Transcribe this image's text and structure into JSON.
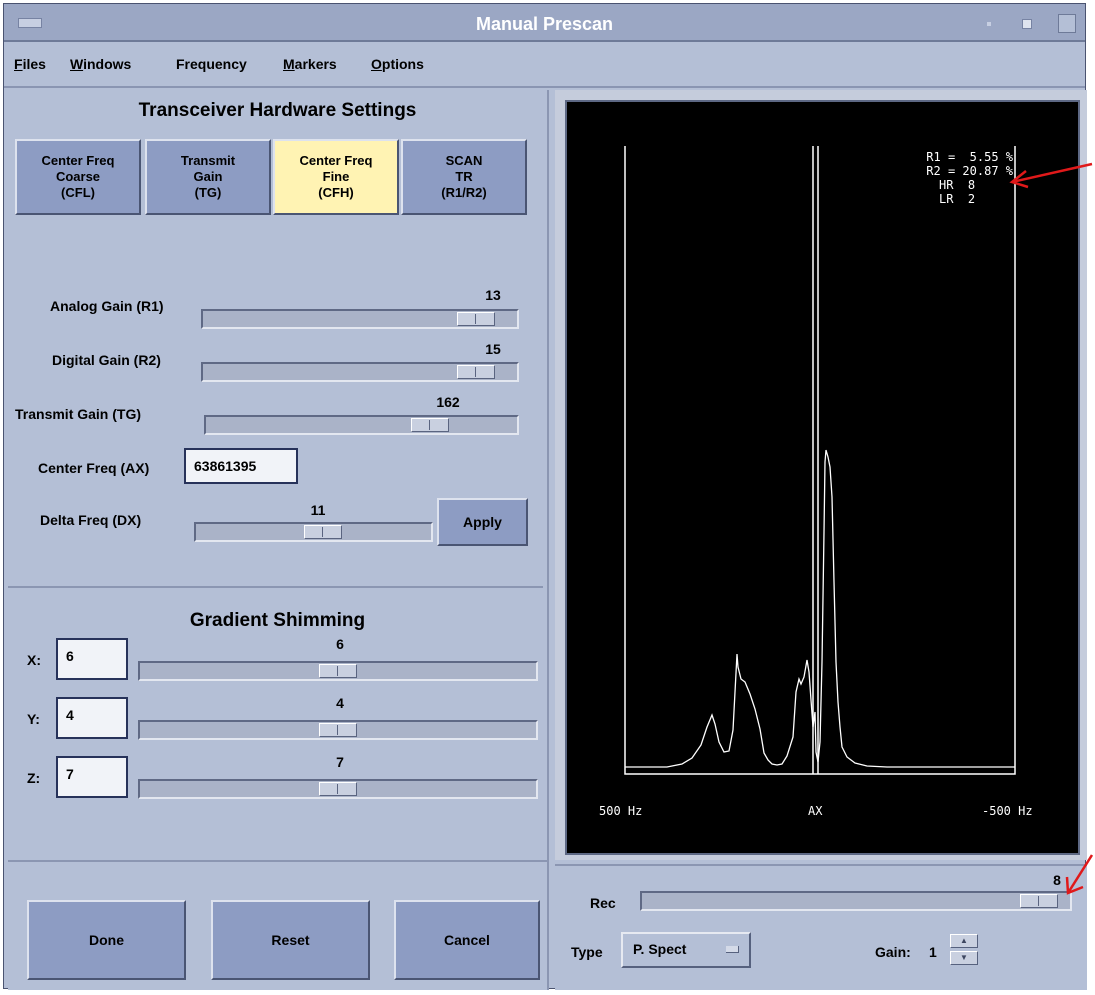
{
  "window": {
    "title": "Manual Prescan"
  },
  "menu": [
    {
      "underline": "F",
      "rest": "iles"
    },
    {
      "underline": "W",
      "rest": "indows"
    },
    {
      "underline": "",
      "rest": "Frequency"
    },
    {
      "underline": "M",
      "rest": "arkers"
    },
    {
      "underline": "O",
      "rest": "ptions"
    }
  ],
  "hardware": {
    "title": "Transceiver Hardware Settings",
    "modes": [
      {
        "label": "Center Freq\nCoarse\n(CFL)",
        "active": false
      },
      {
        "label": "Transmit\nGain\n(TG)",
        "active": false
      },
      {
        "label": "Center Freq\nFine\n(CFH)",
        "active": true
      },
      {
        "label": "SCAN\nTR\n(R1/R2)",
        "active": false
      }
    ],
    "analog_gain": {
      "label": "Analog Gain (R1)",
      "value": "13",
      "level": 0.92
    },
    "digital_gain": {
      "label": "Digital Gain (R2)",
      "value": "15",
      "level": 0.92
    },
    "transmit_gain": {
      "label": "Transmit Gain (TG)",
      "value": "162",
      "level": 0.75
    },
    "center_freq": {
      "label": "Center Freq (AX)",
      "value": "63861395"
    },
    "delta_freq": {
      "label": "Delta Freq (DX)",
      "value": "11",
      "level": 0.55
    },
    "apply_label": "Apply"
  },
  "shimming": {
    "title": "Gradient Shimming",
    "axes": [
      {
        "label": "X:",
        "input": "6",
        "value": "6",
        "level": 0.5
      },
      {
        "label": "Y:",
        "input": "4",
        "value": "4",
        "level": 0.5
      },
      {
        "label": "Z:",
        "input": "7",
        "value": "7",
        "level": 0.5
      }
    ]
  },
  "actions": {
    "done": "Done",
    "reset": "Reset",
    "cancel": "Cancel"
  },
  "spectrum": {
    "stats": [
      "R1 =  5.55 %",
      "R2 = 20.87 %",
      "HR  8",
      "LR  2"
    ],
    "x_left": "500 Hz",
    "x_center": "AX",
    "x_right": "-500 Hz"
  },
  "receiver": {
    "rec_label": "Rec",
    "rec_value": "8",
    "rec_level": 0.97,
    "type_label": "Type",
    "type_value": "P. Spect",
    "gain_label": "Gain:",
    "gain_value": "1"
  },
  "colors": {
    "window_bg": "#b4bfd6",
    "active_mode": "#fff3b3",
    "annotation": "#e0191a"
  }
}
